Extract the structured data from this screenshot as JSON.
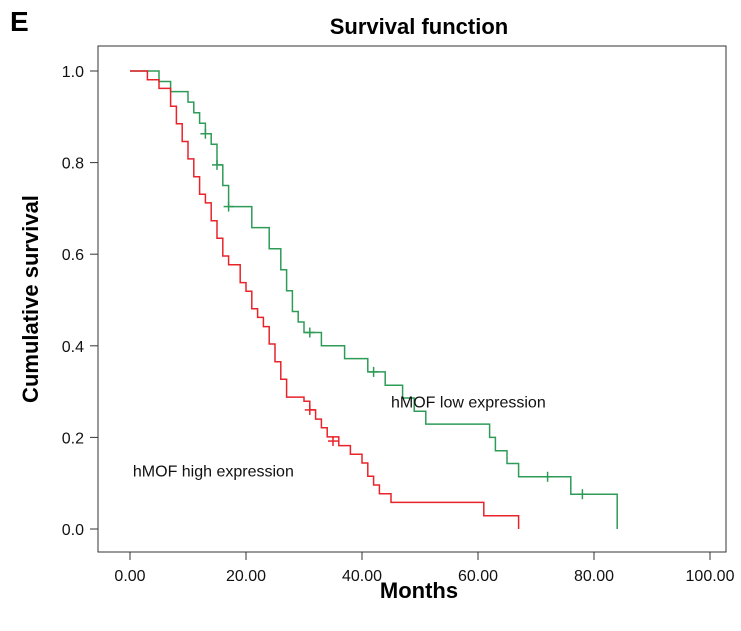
{
  "panel_label": "E",
  "chart_data": {
    "type": "line",
    "title": "Survival function",
    "xlabel": "Months",
    "ylabel": "Cumulative survival",
    "xlim": [
      0,
      100
    ],
    "ylim": [
      0,
      1
    ],
    "x_ticks": [
      "0.00",
      "20.00",
      "40.00",
      "60.00",
      "80.00",
      "100.00"
    ],
    "y_ticks": [
      "0.0",
      "0.2",
      "0.4",
      "0.6",
      "0.8",
      "1.0"
    ],
    "x_tick_values": [
      0,
      20,
      40,
      60,
      80,
      100
    ],
    "y_tick_values": [
      0,
      0.2,
      0.4,
      0.6,
      0.8,
      1.0
    ],
    "grid": false,
    "series": [
      {
        "name": "hMOF low expression",
        "color": "#2e9b57",
        "label_at": [
          45,
          0.265
        ],
        "x": [
          0,
          5,
          7,
          10,
          11,
          12,
          13,
          14,
          15,
          16,
          17,
          19,
          21,
          24,
          26,
          27,
          28,
          29,
          30,
          33,
          37,
          41,
          44,
          47,
          49,
          51,
          55,
          62,
          63,
          65,
          67,
          69,
          72,
          74,
          76,
          78,
          80,
          84
        ],
        "y": [
          1.0,
          0.977,
          0.955,
          0.932,
          0.909,
          0.886,
          0.863,
          0.84,
          0.795,
          0.75,
          0.704,
          0.704,
          0.658,
          0.612,
          0.566,
          0.52,
          0.475,
          0.452,
          0.429,
          0.4,
          0.372,
          0.343,
          0.314,
          0.286,
          0.257,
          0.229,
          0.229,
          0.2,
          0.171,
          0.143,
          0.114,
          0.114,
          0.114,
          0.114,
          0.076,
          0.076,
          0.076,
          0.0
        ],
        "censored_x": [
          13,
          15,
          17,
          31,
          42,
          72,
          78
        ],
        "censored_y": [
          0.863,
          0.795,
          0.704,
          0.429,
          0.343,
          0.114,
          0.076
        ]
      },
      {
        "name": "hMOF high expression",
        "color": "#e8232a",
        "label_at": [
          0.5,
          0.115
        ],
        "x": [
          0,
          3,
          5,
          7,
          8,
          9,
          10,
          11,
          12,
          13,
          14,
          15,
          16,
          17,
          19,
          20,
          21,
          22,
          23,
          24,
          25,
          26,
          27,
          30,
          31,
          32,
          33,
          34,
          36,
          38,
          40,
          41,
          42,
          43,
          45,
          61,
          67
        ],
        "y": [
          1.0,
          0.981,
          0.962,
          0.923,
          0.885,
          0.846,
          0.808,
          0.769,
          0.731,
          0.712,
          0.673,
          0.635,
          0.596,
          0.577,
          0.538,
          0.519,
          0.481,
          0.462,
          0.442,
          0.404,
          0.365,
          0.327,
          0.288,
          0.279,
          0.26,
          0.24,
          0.221,
          0.201,
          0.182,
          0.163,
          0.144,
          0.115,
          0.096,
          0.077,
          0.058,
          0.029,
          0.0
        ],
        "censored_x": [
          31,
          35
        ],
        "censored_y": [
          0.26,
          0.192
        ]
      }
    ]
  }
}
